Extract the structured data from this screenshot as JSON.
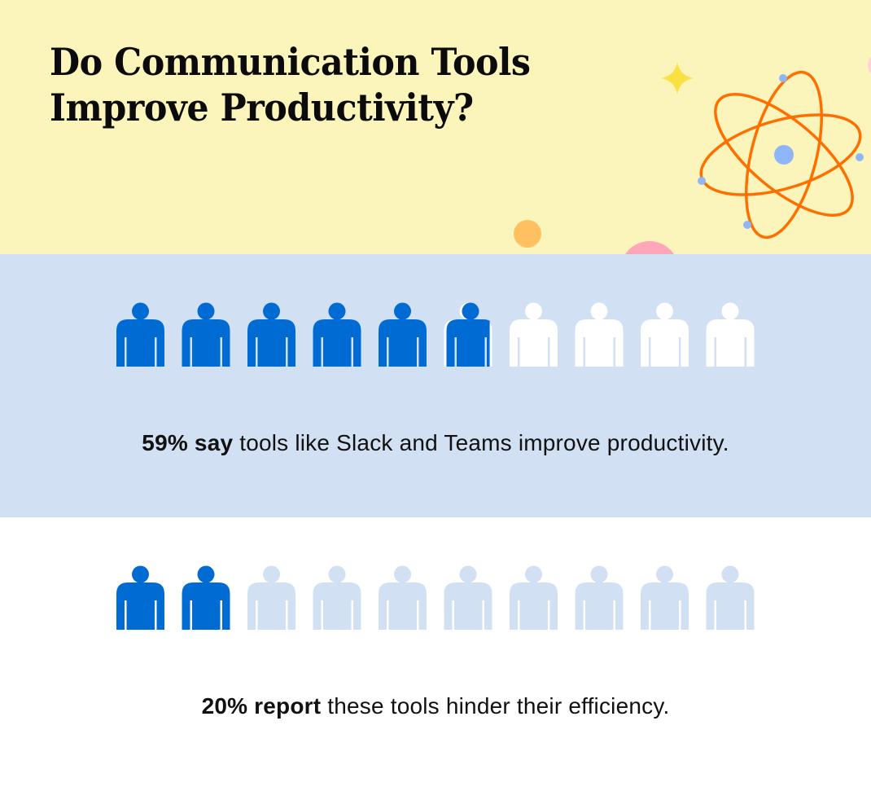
{
  "header": {
    "title_line1": "Do Communication Tools",
    "title_line2": "Improve Productivity?"
  },
  "colors": {
    "header_bg": "#fcf5bb",
    "section1_bg": "#d1e0f3",
    "section2_bg": "#ffffff",
    "icon_filled": "#006bd3",
    "icon_empty_row1": "#ffffff",
    "icon_empty_row2": "#d1e0f3",
    "atom_orbit": "#ff6f00",
    "atom_electron": "#8fb6f9",
    "sparkle": "#fbe044",
    "orange_dot": "#ffc062",
    "pink_dot": "#ffa6b9"
  },
  "stats": [
    {
      "bold": "59% say",
      "rest": " tools like Slack and Teams improve productivity."
    },
    {
      "bold": "20% report",
      "rest": " these tools hinder their efficiency."
    }
  ],
  "chart_data": {
    "type": "pictogram",
    "title": "Do Communication Tools Improve Productivity?",
    "icons_per_row": 10,
    "series": [
      {
        "name": "Say tools like Slack and Teams improve productivity",
        "value_percent": 59,
        "filled_icons": 5.9
      },
      {
        "name": "Report these tools hinder their efficiency",
        "value_percent": 20,
        "filled_icons": 2
      }
    ]
  }
}
